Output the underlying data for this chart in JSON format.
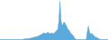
{
  "values": [
    1,
    1,
    1,
    1,
    1,
    1,
    1,
    1,
    1,
    1,
    1,
    1,
    1,
    1,
    1,
    1,
    1,
    1,
    1,
    1,
    1,
    1,
    2,
    2,
    2,
    2,
    3,
    3,
    3,
    4,
    4,
    5,
    5,
    6,
    6,
    7,
    8,
    9,
    10,
    11,
    13,
    12,
    11,
    13,
    14,
    12,
    11,
    13,
    12,
    11,
    13,
    15,
    17,
    19,
    35,
    70,
    35,
    25,
    30,
    32,
    28,
    25,
    20,
    18,
    15,
    12,
    10,
    8,
    5,
    2,
    1,
    1,
    1,
    1,
    1,
    1,
    1,
    1,
    1,
    1,
    15,
    25,
    15,
    10,
    12,
    10,
    8,
    6,
    5,
    4,
    3,
    2,
    1,
    1,
    1,
    1,
    1,
    1,
    1,
    1
  ],
  "fill_color": "#5aabdc",
  "line_color": "#5aabdc",
  "background_color": "#ffffff"
}
